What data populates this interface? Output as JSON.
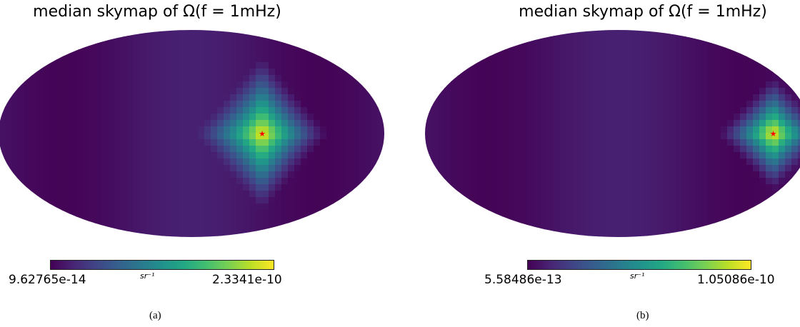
{
  "chart_data": [
    {
      "type": "heatmap",
      "projection": "mollweide",
      "title_prefix": "median skymap of ",
      "title_math": "Ω(f = 1mHz)",
      "colorbar": {
        "min_label": "9.62765e-14",
        "max_label": "2.3341e-10",
        "unit": "sr⁻¹",
        "colormap": "viridis"
      },
      "peak": {
        "lon_deg": -66,
        "lat_deg": 0
      },
      "marker": {
        "symbol": "★",
        "color": "#ff0000",
        "lon_deg": -66,
        "lat_deg": 0
      },
      "caption": "(a)"
    },
    {
      "type": "heatmap",
      "projection": "mollweide",
      "title_prefix": "median skymap of ",
      "title_math": "Ω(f = 1mHz)",
      "colorbar": {
        "min_label": "5.58486e-13",
        "max_label": "1.05086e-10",
        "unit": "sr⁻¹",
        "colormap": "viridis"
      },
      "peak": {
        "lon_deg": -145,
        "lat_deg": 0
      },
      "marker": {
        "symbol": "★",
        "color": "#ff0000",
        "lon_deg": -145,
        "lat_deg": 0
      },
      "caption": "(b)"
    }
  ]
}
